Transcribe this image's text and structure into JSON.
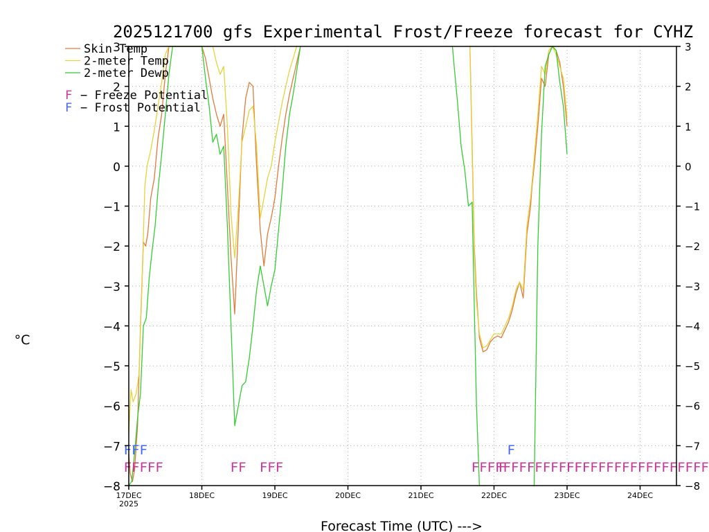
{
  "chart_data": {
    "type": "line",
    "title": "2025121700 gfs Experimental Frost/Freeze forecast for CYHZ",
    "ylabel": "°C",
    "xlabel": "Forecast Time (UTC) --->",
    "ylim": [
      -8,
      3
    ],
    "xlim": [
      0,
      7.5
    ],
    "y_ticks": [
      3,
      2,
      1,
      0,
      -1,
      -2,
      -3,
      -4,
      -5,
      -6,
      -7,
      -8
    ],
    "y_tick_labels": [
      "3",
      "2",
      "1",
      "0",
      "−1",
      "−2",
      "−3",
      "−4",
      "−5",
      "−6",
      "−7",
      "−8"
    ],
    "x_ticks": [
      0,
      1,
      2,
      3,
      4,
      5,
      6,
      7
    ],
    "x_tick_labels": [
      "17DEC",
      "18DEC",
      "19DEC",
      "20DEC",
      "21DEC",
      "22DEC",
      "23DEC",
      "24DEC"
    ],
    "x_year_label": "2025",
    "grid": true,
    "legend": {
      "position": "top-left",
      "entries": [
        {
          "name": "Skin Temp",
          "color": "#e07a3a"
        },
        {
          "name": "2-meter Temp",
          "color": "#e6d23a"
        },
        {
          "name": "2-meter Dewp",
          "color": "#33cc33"
        }
      ],
      "potentials": [
        {
          "letter": "F",
          "label": "− Freeze Potential",
          "color": "#cc3399"
        },
        {
          "letter": "F",
          "label": "− Frost Potential",
          "color": "#4466ff"
        }
      ]
    },
    "series": [
      {
        "name": "Skin Temp",
        "color": "#e07a3a",
        "x": [
          0,
          0.02,
          0.05,
          0.08,
          0.12,
          0.16,
          0.2,
          0.23,
          0.26,
          0.3,
          0.35,
          0.4,
          0.45,
          0.5,
          0.55,
          0.6,
          0.65,
          0.75,
          0.85,
          0.95,
          1.0,
          1.05,
          1.1,
          1.15,
          1.2,
          1.25,
          1.3,
          1.35,
          1.4,
          1.45,
          1.5,
          1.55,
          1.6,
          1.65,
          1.7,
          1.75,
          1.8,
          1.85,
          1.9,
          1.95,
          2.0,
          2.05,
          2.1,
          2.15,
          2.2,
          2.25,
          2.3,
          2.35
        ],
        "values": [
          -7.2,
          -7.7,
          -7.9,
          -7.6,
          -6.5,
          -4.0,
          -1.9,
          -2.0,
          -1.7,
          -0.8,
          -0.3,
          0.7,
          1.3,
          2.3,
          3.0,
          3.0,
          3.0,
          3.0,
          3.0,
          3.0,
          3.0,
          2.7,
          2.2,
          1.7,
          1.3,
          1.0,
          1.3,
          -0.5,
          -2.3,
          -3.7,
          -1.5,
          0.7,
          1.7,
          2.1,
          2.0,
          0.0,
          -1.6,
          -2.5,
          -1.7,
          -1.3,
          -0.8,
          0.0,
          0.7,
          1.3,
          1.8,
          2.2,
          2.6,
          3.0
        ]
      },
      {
        "name": "Skin Temp",
        "color": "#e07a3a",
        "x": [
          4.67,
          4.7,
          4.73,
          4.76,
          4.8,
          4.85,
          4.9,
          4.95,
          5.0,
          5.05,
          5.1,
          5.15,
          5.2,
          5.25,
          5.3,
          5.35,
          5.4,
          5.45,
          5.5,
          5.52,
          5.55,
          5.6,
          5.65,
          5.7,
          5.75,
          5.8,
          5.85,
          5.9,
          5.95,
          6.0
        ],
        "values": [
          3.0,
          0.5,
          -2.0,
          -3.2,
          -4.3,
          -4.65,
          -4.6,
          -4.4,
          -4.3,
          -4.25,
          -4.3,
          -4.1,
          -3.9,
          -3.6,
          -3.2,
          -2.9,
          -3.3,
          -1.7,
          -1.0,
          -0.5,
          0.0,
          1.0,
          2.2,
          2.0,
          2.8,
          3.0,
          2.9,
          2.6,
          2.0,
          1.0
        ]
      },
      {
        "name": "2-meter Temp",
        "color": "#e6d23a",
        "x": [
          0,
          0.03,
          0.06,
          0.1,
          0.14,
          0.18,
          0.22,
          0.25,
          0.3,
          0.35,
          0.4,
          0.45,
          0.5,
          0.55,
          0.6,
          0.7,
          0.8,
          0.9,
          1.0,
          1.05,
          1.1,
          1.15,
          1.2,
          1.25,
          1.3,
          1.35,
          1.4,
          1.45,
          1.5,
          1.55,
          1.6,
          1.65,
          1.7,
          1.75,
          1.8,
          1.85,
          1.9,
          1.95,
          2.0,
          2.05,
          2.1,
          2.15,
          2.2,
          2.25,
          2.3
        ],
        "values": [
          -6.7,
          -5.6,
          -5.9,
          -5.7,
          -5.2,
          -3.0,
          -0.5,
          0.0,
          0.4,
          0.9,
          1.5,
          2.1,
          2.8,
          3.0,
          3.0,
          3.0,
          3.0,
          3.0,
          3.0,
          3.0,
          3.0,
          3.0,
          2.6,
          2.3,
          2.5,
          1.0,
          -1.2,
          -2.3,
          -1.0,
          0.6,
          1.0,
          1.4,
          1.5,
          0.5,
          -1.3,
          -0.8,
          -0.3,
          0.0,
          0.6,
          1.1,
          1.6,
          2.0,
          2.4,
          2.7,
          3.0
        ]
      },
      {
        "name": "2-meter Temp",
        "color": "#e6d23a",
        "x": [
          4.67,
          4.7,
          4.73,
          4.76,
          4.8,
          4.85,
          4.9,
          4.95,
          5.0,
          5.05,
          5.1,
          5.15,
          5.2,
          5.25,
          5.3,
          5.35,
          5.4,
          5.45,
          5.5,
          5.55,
          5.6,
          5.65,
          5.7,
          5.75,
          5.8,
          5.85,
          5.9,
          5.95,
          6.0
        ],
        "values": [
          3.0,
          0.3,
          -2.2,
          -3.4,
          -4.2,
          -4.55,
          -4.5,
          -4.35,
          -4.2,
          -4.2,
          -4.2,
          -4.0,
          -3.8,
          -3.5,
          -3.1,
          -2.9,
          -3.1,
          -1.5,
          -0.8,
          0.2,
          1.3,
          2.5,
          2.3,
          2.9,
          3.0,
          2.8,
          2.5,
          2.2,
          1.2
        ]
      },
      {
        "name": "2-meter Dewp",
        "color": "#33cc33",
        "x": [
          0,
          0.04,
          0.08,
          0.12,
          0.16,
          0.2,
          0.24,
          0.28,
          0.32,
          0.36,
          0.4,
          0.45,
          0.5,
          0.55,
          0.6,
          0.7,
          0.8,
          0.9,
          1.0,
          1.05,
          1.1,
          1.15,
          1.2,
          1.25,
          1.3,
          1.35,
          1.4,
          1.45,
          1.5,
          1.55,
          1.6,
          1.65,
          1.7,
          1.75,
          1.8,
          1.85,
          1.9,
          1.95,
          2.0,
          2.05,
          2.1,
          2.15,
          2.2,
          2.25,
          2.3,
          2.35
        ],
        "values": [
          -8.0,
          -7.9,
          -7.2,
          -6.3,
          -5.7,
          -4.0,
          -3.8,
          -2.8,
          -2.1,
          -1.5,
          -0.6,
          0.3,
          1.3,
          2.3,
          3.0,
          3.0,
          3.0,
          3.0,
          3.0,
          2.2,
          1.5,
          0.6,
          0.8,
          0.3,
          0.5,
          -1.5,
          -4.0,
          -6.5,
          -6.0,
          -5.5,
          -5.4,
          -4.8,
          -4.0,
          -3.1,
          -2.5,
          -3.0,
          -3.5,
          -3.0,
          -2.6,
          -1.6,
          -0.6,
          0.5,
          1.3,
          1.8,
          2.4,
          3.0
        ]
      },
      {
        "name": "2-meter Dewp",
        "color": "#33cc33",
        "x": [
          4.43,
          4.46,
          4.5,
          4.55,
          4.6,
          4.65,
          4.7,
          4.73,
          4.76,
          4.8
        ],
        "values": [
          3.0,
          2.4,
          1.6,
          0.5,
          -0.1,
          -1.0,
          -0.9,
          -3.5,
          -6.0,
          -8.0
        ]
      },
      {
        "name": "2-meter Dewp",
        "color": "#33cc33",
        "x": [
          5.55,
          5.6,
          5.65,
          5.7,
          5.75,
          5.8,
          5.85,
          5.9,
          5.95,
          6.0
        ],
        "values": [
          -8.0,
          -2.0,
          0.8,
          2.5,
          2.8,
          3.0,
          2.9,
          2.1,
          1.5,
          0.3
        ]
      }
    ],
    "freeze_potential_text": [
      {
        "x": -0.07,
        "text": "FFFFF"
      },
      {
        "x": 1.39,
        "text": "FF"
      },
      {
        "x": 1.79,
        "text": "FFF"
      },
      {
        "x": 4.69,
        "text": "FFFFFFFFFFFFFF"
      },
      {
        "x": 5.06,
        "text": "F"
      },
      {
        "x": 5.99,
        "text": "FFFFFFFFFFFFFFFFFFFFFF"
      }
    ],
    "frost_potential_text": [
      {
        "x": -0.07,
        "text": "FFF"
      },
      {
        "x": 5.18,
        "text": "F"
      }
    ]
  }
}
